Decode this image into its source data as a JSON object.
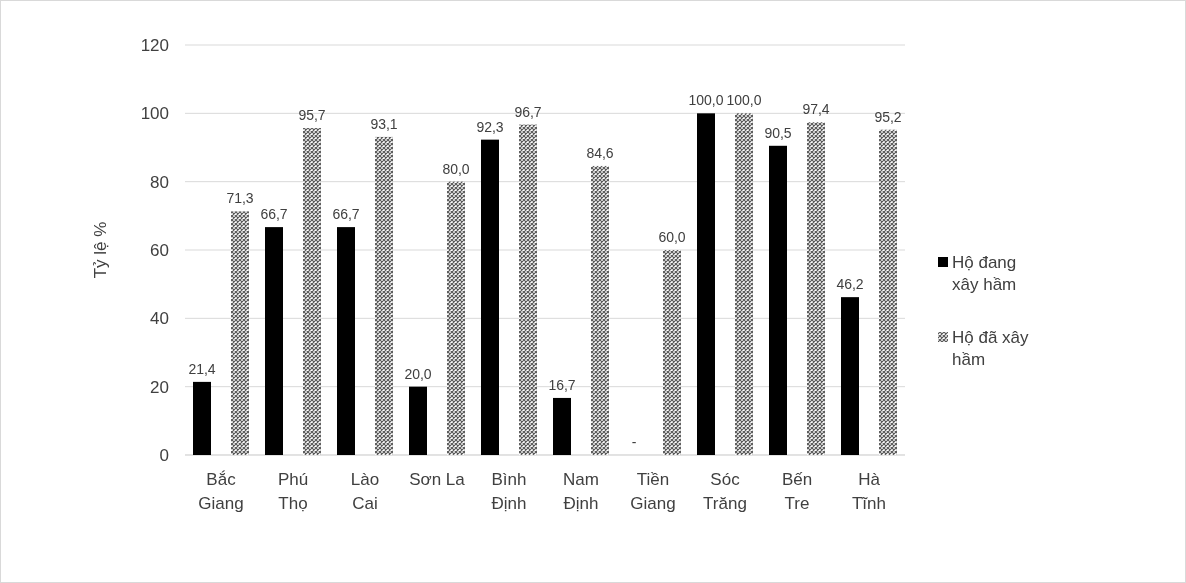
{
  "chart_data": {
    "type": "bar",
    "ylabel": "Tỷ lệ %",
    "categories": [
      "Bắc\nGiang",
      "Phú\nThọ",
      "Lào\nCai",
      "Sơn La",
      "Bình\nĐịnh",
      "Nam\nĐịnh",
      "Tiền\nGiang",
      "Sóc\nTrăng",
      "Bến\nTre",
      "Hà\nTĩnh"
    ],
    "series": [
      {
        "name": "Hộ đang xây hầm",
        "color": "#000000",
        "values": [
          21.4,
          66.7,
          66.7,
          20.0,
          92.3,
          16.7,
          null,
          100.0,
          90.5,
          46.2
        ],
        "value_labels": [
          "21,4",
          "66,7",
          "66,7",
          "20,0",
          "92,3",
          "16,7",
          "-",
          "100,0",
          "90,5",
          "46,2"
        ]
      },
      {
        "name": "Hộ đã xây hầm",
        "color": "#595959",
        "values": [
          71.3,
          95.7,
          93.1,
          80.0,
          96.7,
          84.6,
          60.0,
          100.0,
          97.4,
          95.2
        ],
        "value_labels": [
          "71,3",
          "95,7",
          "93,1",
          "80,0",
          "96,7",
          "84,6",
          "60,0",
          "100,0",
          "97,4",
          "95,2"
        ]
      }
    ],
    "ylim": [
      0,
      120
    ],
    "yticks": [
      0,
      20,
      40,
      60,
      80,
      100,
      120
    ],
    "grid": "y",
    "legend": "right"
  }
}
